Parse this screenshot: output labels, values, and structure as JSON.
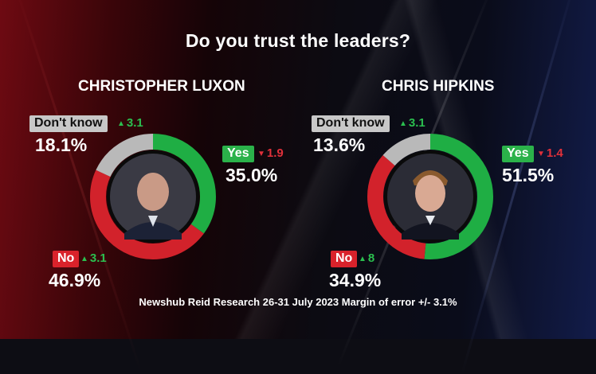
{
  "title": "Do you trust the leaders?",
  "footer": "Newshub Reid Research 26-31 July 2023 Margin of error +/- 3.1%",
  "colors": {
    "yes": "#1fae44",
    "no": "#d2222b",
    "dont_know": "#b9b9b9",
    "up": "#2bbf4f",
    "down": "#e0303a"
  },
  "chart_data": [
    {
      "type": "pie",
      "title": "CHRISTOPHER LUXON",
      "slices": [
        {
          "label": "Yes",
          "value": 35.0,
          "display": "35.0%",
          "change": "1.9",
          "direction": "down"
        },
        {
          "label": "No",
          "value": 46.9,
          "display": "46.9%",
          "change": "3.1",
          "direction": "up"
        },
        {
          "label": "Don't know",
          "value": 18.1,
          "display": "18.1%",
          "change": "3.1",
          "direction": "up"
        }
      ]
    },
    {
      "type": "pie",
      "title": "CHRIS HIPKINS",
      "slices": [
        {
          "label": "Yes",
          "value": 51.5,
          "display": "51.5%",
          "change": "1.4",
          "direction": "down"
        },
        {
          "label": "No",
          "value": 34.9,
          "display": "34.9%",
          "change": "8",
          "direction": "up"
        },
        {
          "label": "Don't know",
          "value": 13.6,
          "display": "13.6%",
          "change": "3.1",
          "direction": "up"
        }
      ]
    }
  ]
}
